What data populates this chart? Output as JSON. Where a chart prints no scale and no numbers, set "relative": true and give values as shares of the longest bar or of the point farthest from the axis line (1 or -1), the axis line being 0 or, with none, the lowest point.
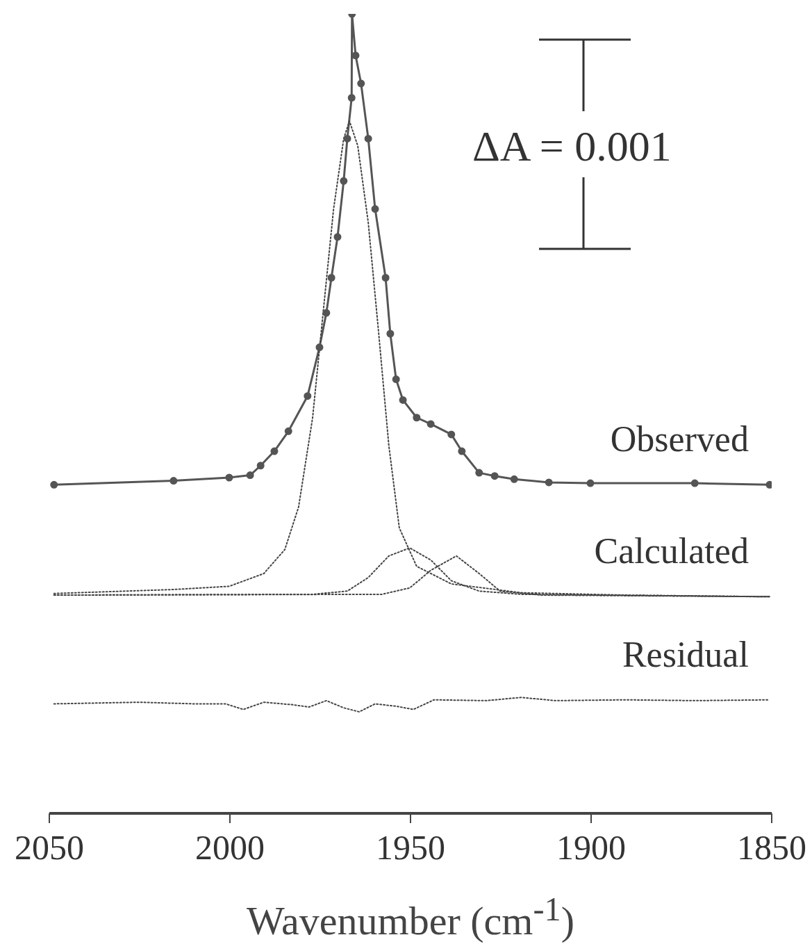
{
  "chart_data": {
    "type": "line",
    "relative": true,
    "xlabel": "Wavenumber (cm$^{-1}$)",
    "xlim": [
      2050,
      1850
    ],
    "xticks": [
      2050,
      2000,
      1950,
      1900,
      1850
    ],
    "grid": false,
    "annotations": [
      "ΔA = 0.001"
    ],
    "series": [
      {
        "name": "Observed",
        "color": "#555555",
        "marker": "circle",
        "line_style": "solid",
        "x": [
          2048.7,
          2015.6,
          2000.2,
          1994.4,
          1991.5,
          1987.7,
          1983.8,
          1978.5,
          1975.2,
          1973.3,
          1971.9,
          1970.2,
          1968.5,
          1967.5,
          1966.3,
          1966.2,
          1965.2,
          1963.7,
          1961.7,
          1959.8,
          1956.9,
          1955.6,
          1954.0,
          1952.1,
          1948.3,
          1944.4,
          1938.7,
          1935.8,
          1931.0,
          1926.7,
          1921.3,
          1911.7,
          1900.2,
          1871.3,
          1850.6
        ],
        "values": [
          0.411,
          0.416,
          0.42,
          0.423,
          0.435,
          0.453,
          0.478,
          0.522,
          0.583,
          0.626,
          0.67,
          0.721,
          0.791,
          0.844,
          0.895,
          1.0,
          0.948,
          0.913,
          0.844,
          0.756,
          0.67,
          0.6,
          0.543,
          0.517,
          0.495,
          0.487,
          0.474,
          0.453,
          0.426,
          0.422,
          0.418,
          0.414,
          0.413,
          0.413,
          0.411
        ]
      },
      {
        "name": "Calculated",
        "color": "#444444",
        "marker": "none",
        "line_style": "dotted",
        "x": [
          2048.7,
          2015.6,
          2000.2,
          1990.6,
          1984.8,
          1981.0,
          1977.1,
          1974.2,
          1971.3,
          1968.5,
          1966.9,
          1964.6,
          1961.7,
          1958.8,
          1956.0,
          1953.1,
          1948.3,
          1938.7,
          1919.4,
          1890.6,
          1850.6
        ],
        "values": [
          0.275,
          0.28,
          0.284,
          0.3,
          0.33,
          0.383,
          0.495,
          0.626,
          0.756,
          0.844,
          0.866,
          0.835,
          0.739,
          0.6,
          0.46,
          0.357,
          0.309,
          0.287,
          0.276,
          0.273,
          0.271
        ]
      },
      {
        "color": "#444444",
        "marker": "none",
        "line_style": "dotted",
        "x": [
          2048.7,
          1977.1,
          1967.5,
          1961.7,
          1956.0,
          1950.2,
          1944.4,
          1938.7,
          1931.0,
          1919.4,
          1850.6
        ],
        "values": [
          0.273,
          0.274,
          0.278,
          0.295,
          0.322,
          0.332,
          0.317,
          0.291,
          0.278,
          0.274,
          0.271
        ]
      },
      {
        "color": "#444444",
        "marker": "none",
        "line_style": "dotted",
        "x": [
          2048.7,
          1957.9,
          1950.2,
          1944.4,
          1937.3,
          1931.0,
          1925.2,
          1913.7,
          1850.6
        ],
        "values": [
          0.273,
          0.274,
          0.282,
          0.304,
          0.322,
          0.3,
          0.278,
          0.273,
          0.271
        ]
      },
      {
        "name": "Residual",
        "color": "#444444",
        "marker": "none",
        "line_style": "dotted",
        "x": [
          2048.7,
          2025.2,
          2009.8,
          2001.2,
          1996.3,
          1990.6,
          1982.9,
          1978.1,
          1973.3,
          1968.5,
          1964.2,
          1959.8,
          1954.0,
          1949.2,
          1943.5,
          1929.0,
          1919.4,
          1909.8,
          1890.6,
          1871.3,
          1850.6
        ],
        "values": [
          0.137,
          0.139,
          0.137,
          0.137,
          0.13,
          0.139,
          0.136,
          0.133,
          0.141,
          0.132,
          0.127,
          0.137,
          0.134,
          0.13,
          0.142,
          0.141,
          0.145,
          0.141,
          0.142,
          0.141,
          0.142
        ]
      }
    ]
  }
}
